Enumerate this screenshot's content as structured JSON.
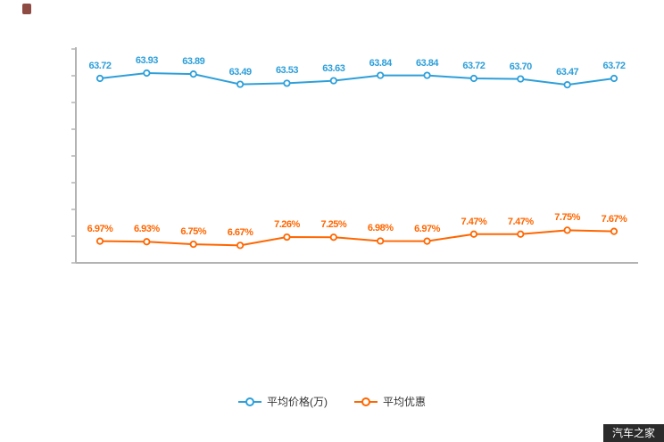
{
  "page": {
    "background": "#ffffff"
  },
  "chart_data": {
    "type": "line",
    "title": "",
    "xlabel": "",
    "ylabel": "",
    "x_tick_labels_visible": false,
    "y_tick_labels_visible": false,
    "grid": false,
    "legend_position": "bottom",
    "axis_color": "#b3b3b3",
    "point_count": 12,
    "series": [
      {
        "name": "平均价格(万)",
        "color": "#2e9fd9",
        "values": [
          63.72,
          63.93,
          63.89,
          63.49,
          63.53,
          63.63,
          63.84,
          63.84,
          63.72,
          63.7,
          63.47,
          63.72
        ],
        "labels": [
          "63.72",
          "63.93",
          "63.89",
          "63.49",
          "63.53",
          "63.63",
          "63.84",
          "63.84",
          "63.72",
          "63.70",
          "63.47",
          "63.72"
        ]
      },
      {
        "name": "平均优惠",
        "color": "#ff6600",
        "values": [
          6.97,
          6.93,
          6.75,
          6.67,
          7.26,
          7.25,
          6.98,
          6.97,
          7.47,
          7.47,
          7.75,
          7.67
        ],
        "labels": [
          "6.97%",
          "6.93%",
          "6.75%",
          "6.67%",
          "7.26%",
          "7.25%",
          "6.98%",
          "6.97%",
          "7.47%",
          "7.47%",
          "7.75%",
          "7.67%"
        ]
      }
    ]
  },
  "legend": {
    "items": [
      {
        "label": "平均价格(万)",
        "color": "#2e9fd9"
      },
      {
        "label": "平均优惠",
        "color": "#ff6600"
      }
    ]
  },
  "watermark": {
    "text": "汽车之家",
    "background": "#2b2b2b",
    "color": "#ffffff"
  }
}
